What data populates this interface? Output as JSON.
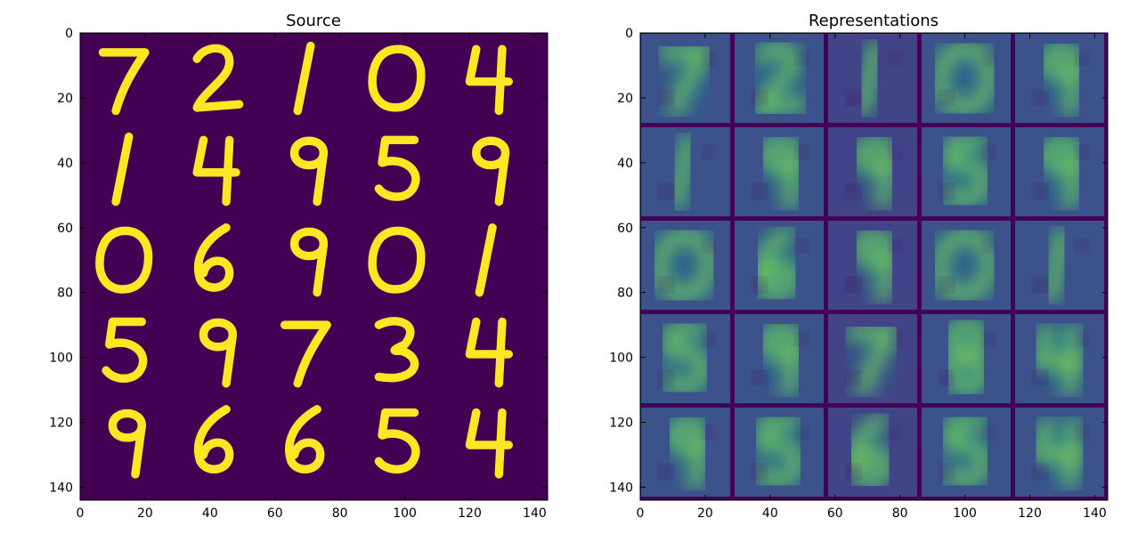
{
  "colors": {
    "background": "#440154",
    "foreground": "#fde725",
    "palette": [
      "#440154",
      "#3b528b",
      "#21918c",
      "#5ec962",
      "#fde725"
    ]
  },
  "chart_data": [
    {
      "type": "heatmap",
      "title": "Source",
      "xlabel": "",
      "ylabel": "",
      "xlim": [
        0,
        144
      ],
      "ylim": [
        144,
        0
      ],
      "xticks": [
        0,
        20,
        40,
        60,
        80,
        100,
        120,
        140
      ],
      "yticks": [
        0,
        20,
        40,
        60,
        80,
        100,
        120,
        140
      ],
      "grid": false,
      "tile_grid": [
        5,
        5
      ],
      "tile_size": 28,
      "digits": [
        [
          "7",
          "2",
          "1",
          "0",
          "4"
        ],
        [
          "1",
          "4",
          "9",
          "5",
          "9"
        ],
        [
          "0",
          "6",
          "9",
          "0",
          "1"
        ],
        [
          "5",
          "9",
          "7",
          "3",
          "4"
        ],
        [
          "9",
          "6",
          "6",
          "5",
          "4"
        ]
      ],
      "colormap": "viridis"
    },
    {
      "type": "heatmap",
      "title": "Representations",
      "xlabel": "",
      "ylabel": "",
      "xlim": [
        0,
        144
      ],
      "ylim": [
        144,
        0
      ],
      "xticks": [
        0,
        20,
        40,
        60,
        80,
        100,
        120,
        140
      ],
      "yticks": [
        0,
        20,
        40,
        60,
        80,
        100,
        120,
        140
      ],
      "grid": false,
      "tile_grid": [
        5,
        5
      ],
      "tile_size": 28,
      "digits": [
        [
          "7",
          "2",
          "1",
          "0",
          "9"
        ],
        [
          "1",
          "9",
          "9",
          "5",
          "9"
        ],
        [
          "0",
          "6",
          "9",
          "0",
          "1"
        ],
        [
          "5",
          "9",
          "7",
          "8",
          "4"
        ],
        [
          "9",
          "5",
          "6",
          "5",
          "4"
        ]
      ],
      "colormap": "viridis"
    }
  ]
}
